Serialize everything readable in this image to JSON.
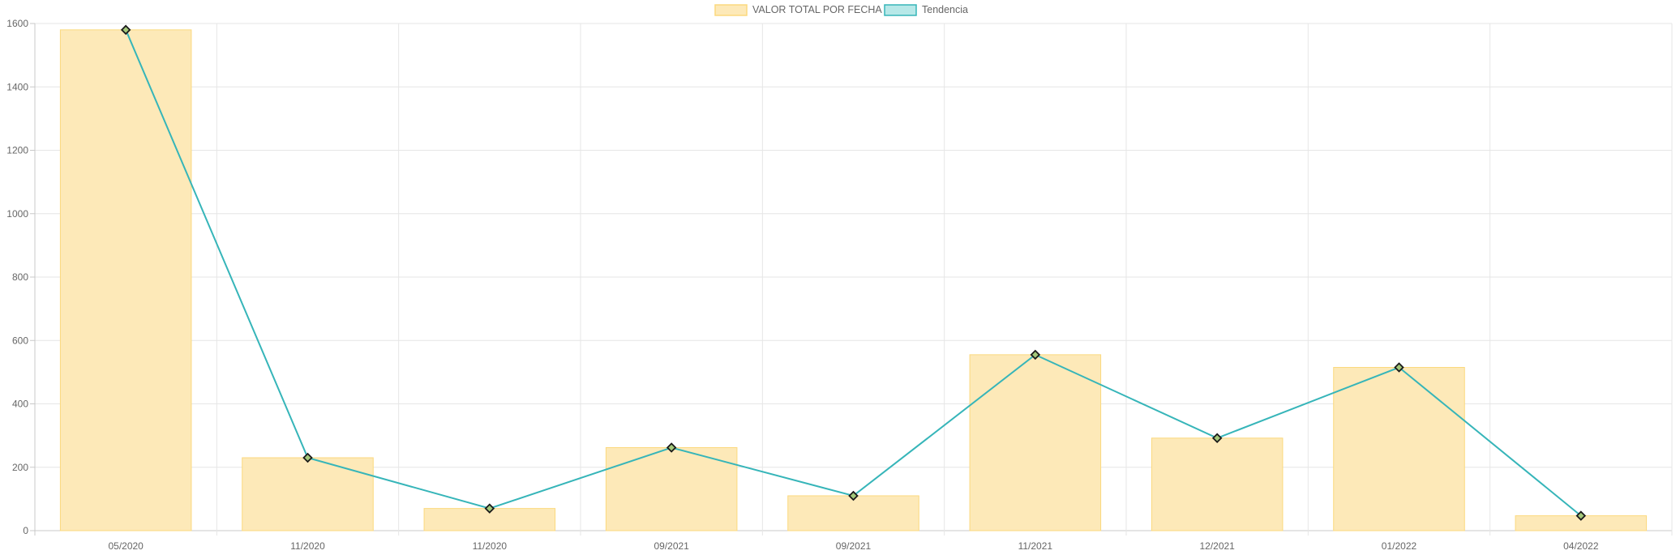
{
  "chart_data": {
    "type": "bar",
    "categories": [
      "05/2020",
      "11/2020",
      "11/2020",
      "09/2021",
      "09/2021",
      "11/2021",
      "12/2021",
      "01/2022",
      "04/2022"
    ],
    "series": [
      {
        "name": "VALOR TOTAL POR FECHA",
        "type": "bar",
        "values": [
          1580,
          230,
          70,
          262,
          110,
          555,
          292,
          515,
          47
        ],
        "color": "#fde9b8",
        "border_color": "#fbd97e"
      },
      {
        "name": "Tendencia",
        "type": "line",
        "values": [
          1580,
          230,
          70,
          262,
          110,
          555,
          292,
          515,
          47
        ],
        "color": "#36b5b9",
        "fill_color": "#b7e8e8",
        "point_style": "diamond"
      }
    ],
    "y_ticks": [
      "0",
      "200",
      "400",
      "600",
      "800",
      "1000",
      "1200",
      "1400",
      "1600"
    ],
    "ylim": [
      0,
      1600
    ],
    "grid": true,
    "legend": "top-center"
  }
}
